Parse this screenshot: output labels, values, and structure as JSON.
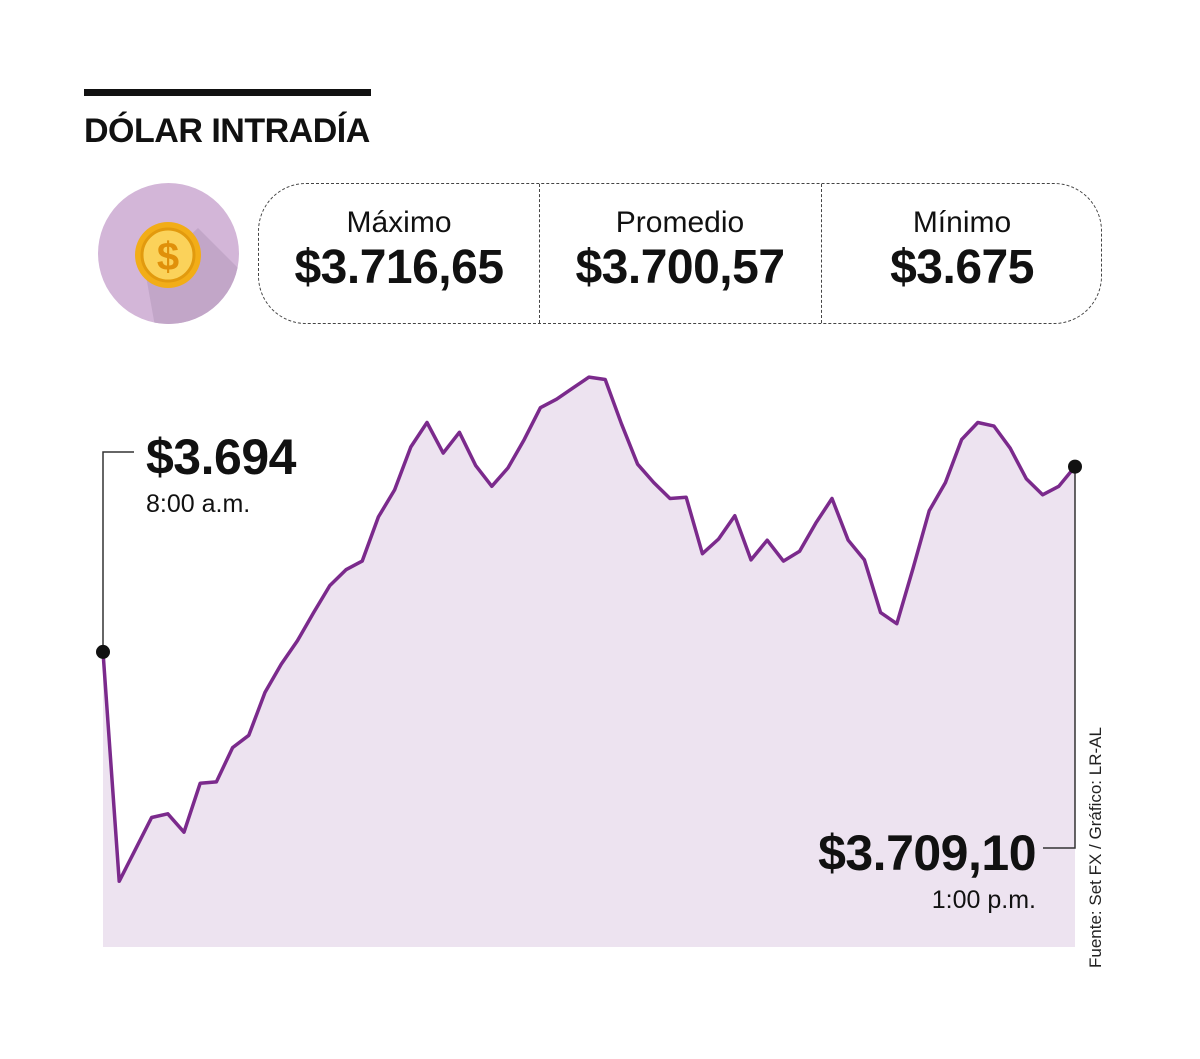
{
  "header": {
    "title": "DÓLAR INTRADÍA"
  },
  "icons": {
    "badge": "dollar-coin-icon"
  },
  "colors": {
    "line": "#7b2a8c",
    "area": "#ede3f0",
    "badge": "#d3b6d8",
    "coin": "#f5b91a"
  },
  "stats": [
    {
      "label": "Máximo",
      "value": "$3.716,65"
    },
    {
      "label": "Promedio",
      "value": "$3.700,57"
    },
    {
      "label": "Mínimo",
      "value": "$3.675"
    }
  ],
  "callouts": {
    "open": {
      "price": "$3.694",
      "time": "8:00 a.m."
    },
    "close": {
      "price": "$3.709,10",
      "time": "1:00 p.m."
    }
  },
  "source": "Fuente: Set FX / Gráfico: LR-AL",
  "chart_data": {
    "type": "area",
    "title": "DÓLAR INTRADÍA",
    "xlabel": "",
    "ylabel": "",
    "x_start": "8:00 a.m.",
    "x_end": "1:00 p.m.",
    "ylim": [
      3675,
      3716.65
    ],
    "grid": false,
    "legend": "none",
    "series": [
      {
        "x": [
          "08:00",
          "08:05",
          "08:10",
          "08:15",
          "08:20",
          "08:25",
          "08:30",
          "08:35",
          "08:40",
          "08:45",
          "08:50",
          "08:55",
          "09:00",
          "09:05",
          "09:10",
          "09:15",
          "09:20",
          "09:25",
          "09:30",
          "09:35",
          "09:40",
          "09:45",
          "09:50",
          "09:55",
          "10:00",
          "10:05",
          "10:10",
          "10:15",
          "10:20",
          "10:25",
          "10:30",
          "10:35",
          "10:40",
          "10:45",
          "10:50",
          "10:55",
          "11:00",
          "11:05",
          "11:10",
          "11:15",
          "11:20",
          "11:25",
          "11:30",
          "11:35",
          "11:40",
          "11:45",
          "11:50",
          "11:55",
          "12:00",
          "12:05",
          "12:10",
          "12:15",
          "12:20",
          "12:25",
          "12:30",
          "12:35",
          "12:40",
          "12:45",
          "12:50",
          "12:55",
          "13:00"
        ],
        "values": [
          3694.0,
          3675.3,
          3677.9,
          3680.5,
          3680.8,
          3679.3,
          3683.3,
          3683.4,
          3686.2,
          3687.2,
          3690.7,
          3693.0,
          3694.9,
          3697.2,
          3699.4,
          3700.7,
          3701.4,
          3705.0,
          3707.2,
          3710.7,
          3712.7,
          3710.2,
          3711.9,
          3709.2,
          3707.5,
          3709.0,
          3711.3,
          3713.9,
          3714.6,
          3715.5,
          3716.4,
          3716.2,
          3712.6,
          3709.3,
          3707.8,
          3706.5,
          3706.6,
          3702.0,
          3703.2,
          3705.1,
          3701.5,
          3703.1,
          3701.4,
          3702.2,
          3704.5,
          3706.5,
          3703.1,
          3701.5,
          3697.2,
          3696.3,
          3700.8,
          3705.5,
          3707.8,
          3711.3,
          3712.7,
          3712.4,
          3710.6,
          3708.1,
          3706.8,
          3707.5,
          3709.1
        ]
      }
    ]
  }
}
